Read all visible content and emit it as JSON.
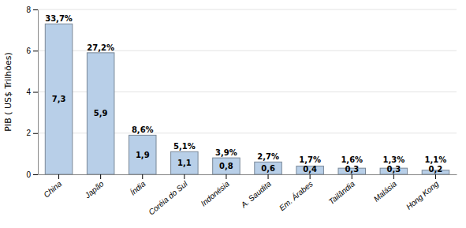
{
  "chart_data": {
    "type": "bar",
    "categories": [
      "China",
      "Japão",
      "Índia",
      "Coréia do Sul",
      "Indonésia",
      "A. Saudita",
      "Em. Árabes",
      "Tailândia",
      "Malásia",
      "Hong Kong"
    ],
    "values": [
      7.3,
      5.9,
      1.9,
      1.1,
      0.8,
      0.6,
      0.4,
      0.3,
      0.3,
      0.2
    ],
    "value_labels": [
      "7,3",
      "5,9",
      "1,9",
      "1,1",
      "0,8",
      "0,6",
      "0,4",
      "0,3",
      "0,3",
      "0,2"
    ],
    "percentages": [
      "33,7%",
      "27,2%",
      "8,6%",
      "5,1%",
      "3,9%",
      "2,7%",
      "1,7%",
      "1,6%",
      "1,3%",
      "1,1%"
    ],
    "ylabel": "PIB ( US$ Trilhões)",
    "ylim": [
      0,
      8
    ],
    "yticks": [
      0,
      2,
      4,
      6,
      8
    ],
    "color": "#b8cfe8",
    "grid": true,
    "data_labels": true
  }
}
